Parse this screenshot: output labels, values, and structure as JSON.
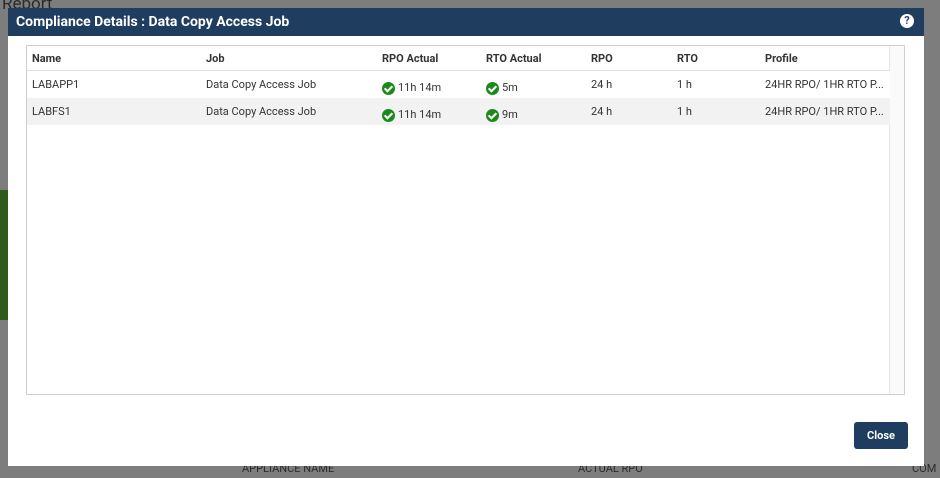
{
  "background": {
    "title": "Report",
    "columns": [
      "APPLIANCE NAME",
      "ACTUAL RPO",
      "COM"
    ]
  },
  "dialog": {
    "title": "Compliance Details : Data Copy Access Job",
    "close": "Close"
  },
  "table": {
    "columns": [
      "Name",
      "Job",
      "RPO Actual",
      "RTO Actual",
      "RPO",
      "RTO",
      "Profile"
    ],
    "rows": [
      [
        "LABAPP1",
        "Data Copy Access Job",
        "11h 14m",
        "5m",
        "24 h",
        "1 h",
        "24HR RPO/ 1HR RTO P..."
      ],
      [
        "LABFS1",
        "Data Copy Access Job",
        "11h 14m",
        "9m",
        "24 h",
        "1 h",
        "24HR RPO/ 1HR RTO P..."
      ]
    ]
  }
}
